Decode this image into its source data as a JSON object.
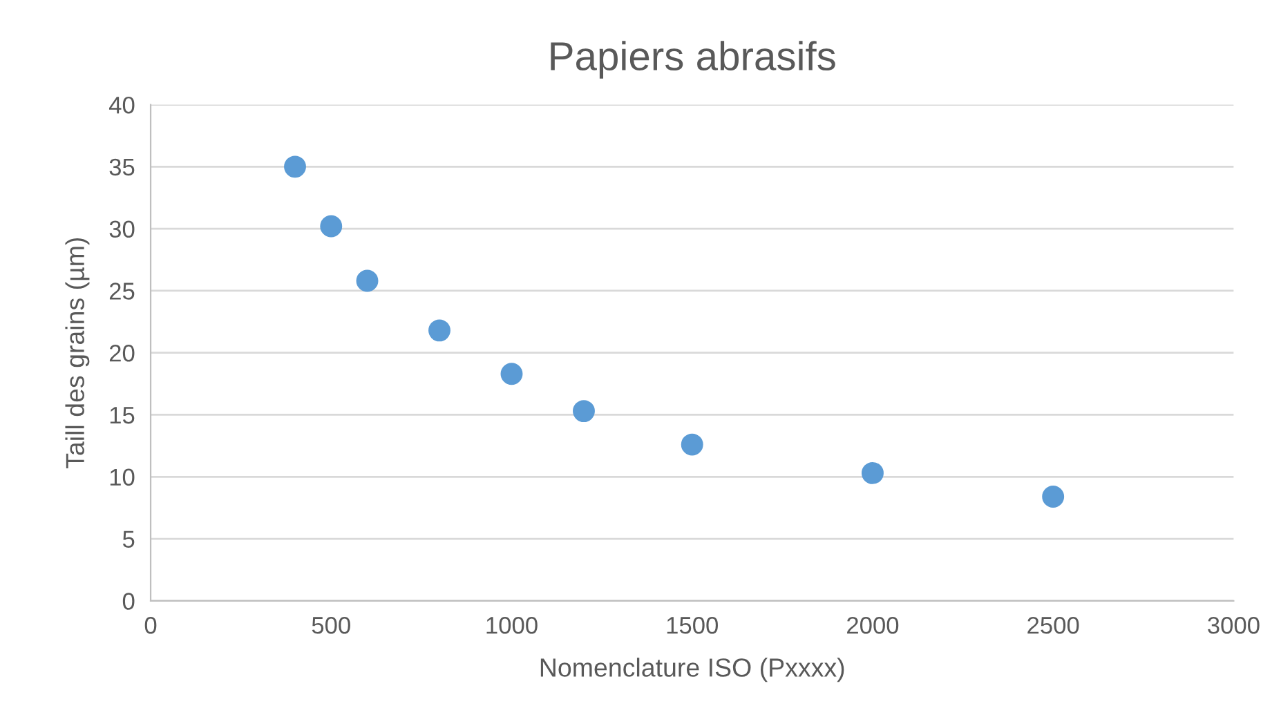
{
  "chart_data": {
    "type": "scatter",
    "title": "Papiers abrasifs",
    "xlabel": "Nomenclature ISO (Pxxxx)",
    "ylabel": "Taill des grains (µm)",
    "x": [
      400,
      500,
      600,
      800,
      1000,
      1200,
      1500,
      2000,
      2500
    ],
    "series": [
      {
        "color": "#5b9bd5",
        "values": [
          35.0,
          30.2,
          25.8,
          21.8,
          18.3,
          15.3,
          12.6,
          10.3,
          8.4
        ]
      }
    ],
    "xlim": [
      0,
      3000
    ],
    "xticks": [
      0,
      500,
      1000,
      1500,
      2000,
      2500,
      3000
    ],
    "ylim": [
      0,
      40
    ],
    "yticks": [
      0,
      5,
      10,
      15,
      20,
      25,
      30,
      35,
      40
    ],
    "grid": "y",
    "marker": "circle"
  }
}
